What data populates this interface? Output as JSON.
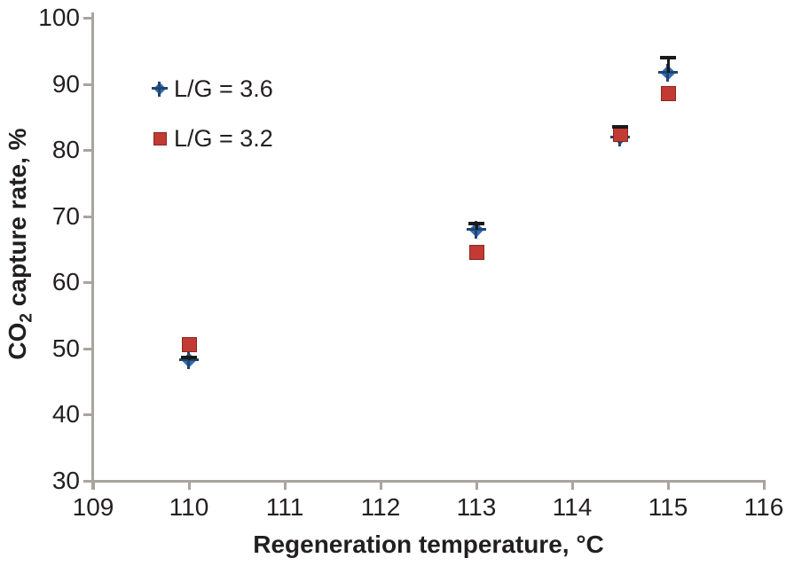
{
  "chart_data": {
    "type": "scatter",
    "title": "",
    "xlabel": "Regeneration temperature, °C",
    "ylabel_pre": "CO",
    "ylabel_sub": "2",
    "ylabel_post": " capture rate, %",
    "xlim": [
      109,
      116
    ],
    "ylim": [
      30,
      100
    ],
    "xticks": [
      109,
      110,
      111,
      112,
      113,
      114,
      115,
      116
    ],
    "yticks": [
      30,
      40,
      50,
      60,
      70,
      80,
      90,
      100
    ],
    "grid": false,
    "legend_position": "upper-left-inside",
    "axis_color": "#a9a49d",
    "text_color": "#231f20",
    "error_bar_color": "#1a1a1a",
    "series": [
      {
        "name": "L/G = 3.6",
        "marker": "diamond",
        "color": "#2e6db6",
        "stub_color": "#22456e",
        "points": [
          {
            "x": 110,
            "y": 48.2,
            "err_up": 0.5
          },
          {
            "x": 113,
            "y": 68.0,
            "err_up": 0.9
          },
          {
            "x": 114.5,
            "y": 81.9,
            "err_up": 1.6
          },
          {
            "x": 115,
            "y": 91.7,
            "err_up": 2.2
          }
        ]
      },
      {
        "name": "L/G = 3.2",
        "marker": "square",
        "color": "#c23a33",
        "border_color": "#8a2722",
        "points": [
          {
            "x": 110,
            "y": 50.7
          },
          {
            "x": 113,
            "y": 64.6
          },
          {
            "x": 114.5,
            "y": 82.4
          },
          {
            "x": 115,
            "y": 88.6
          }
        ]
      }
    ]
  }
}
